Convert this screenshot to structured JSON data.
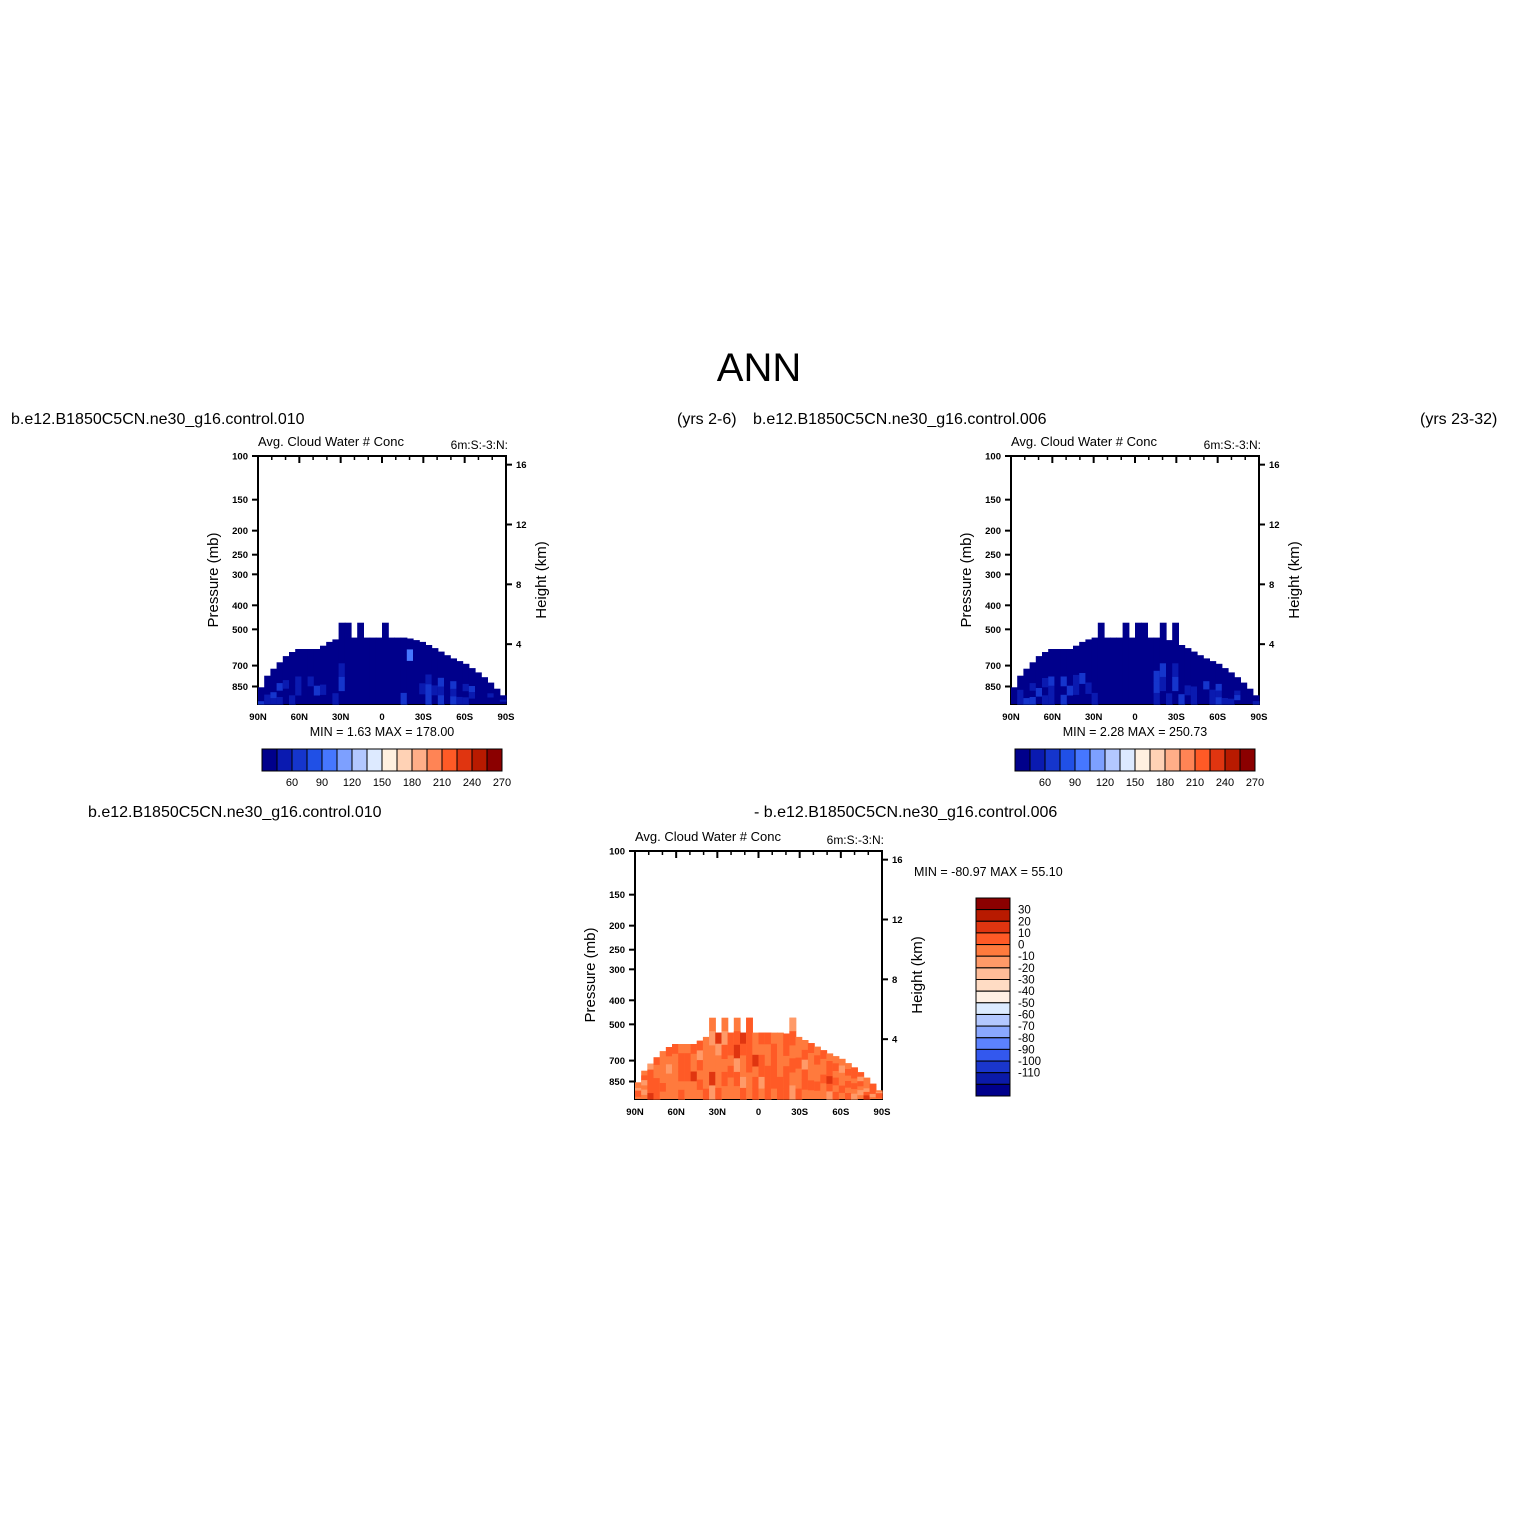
{
  "page_title": "ANN",
  "top_left": {
    "case_label": "b.e12.B1850C5CN.ne30_g16.control.010",
    "years_label": "(yrs 2-6)"
  },
  "top_right": {
    "case_label": "b.e12.B1850C5CN.ne30_g16.control.006",
    "years_label": "(yrs 23-32)"
  },
  "bottom": {
    "case_label_left": "b.e12.B1850C5CN.ne30_g16.control.010",
    "case_label_right": "- b.e12.B1850C5CN.ne30_g16.control.006"
  },
  "colors": {
    "dark_blue": "#00008b",
    "mid_blue": "#1f3fd6",
    "orange": "#ff7a3d",
    "dark_red": "#8b0000"
  },
  "chart_data": [
    {
      "type": "heatmap",
      "panel": "top-left",
      "title": "Avg. Cloud Water # Conc",
      "title_right": "6m:S:-3:N:",
      "ylabel": "Pressure (mb)",
      "ylabel_right": "Height (km)",
      "x_ticks": [
        "90N",
        "60N",
        "30N",
        "0",
        "30S",
        "60S",
        "90S"
      ],
      "y_ticks": [
        100,
        150,
        200,
        250,
        300,
        400,
        500,
        700,
        850
      ],
      "y_right_ticks": [
        16,
        12,
        8,
        4
      ],
      "stats_text": "MIN =    1.63   MAX = 178.00",
      "min": 1.63,
      "max": 178.0,
      "colorbar_orientation": "horizontal",
      "colorbar_labels": [
        "60",
        "90",
        "120",
        "150",
        "180",
        "210",
        "240",
        "270"
      ],
      "colorbar_colors": [
        "#00008b",
        "#0a1ab0",
        "#1535cc",
        "#2050e6",
        "#4677ff",
        "#7da0ff",
        "#b3c8ff",
        "#ddeaff",
        "#fff0e0",
        "#ffd2b5",
        "#ffae88",
        "#ff8455",
        "#ff5a26",
        "#e03510",
        "#b81a00",
        "#8b0000"
      ],
      "field": "blue"
    },
    {
      "type": "heatmap",
      "panel": "top-right",
      "title": "Avg. Cloud Water # Conc",
      "title_right": "6m:S:-3:N:",
      "ylabel": "Pressure (mb)",
      "ylabel_right": "Height (km)",
      "x_ticks": [
        "90N",
        "60N",
        "30N",
        "0",
        "30S",
        "60S",
        "90S"
      ],
      "y_ticks": [
        100,
        150,
        200,
        250,
        300,
        400,
        500,
        700,
        850
      ],
      "y_right_ticks": [
        16,
        12,
        8,
        4
      ],
      "stats_text": "MIN =    2.28   MAX = 250.73",
      "min": 2.28,
      "max": 250.73,
      "colorbar_orientation": "horizontal",
      "colorbar_labels": [
        "60",
        "90",
        "120",
        "150",
        "180",
        "210",
        "240",
        "270"
      ],
      "colorbar_colors": [
        "#00008b",
        "#0a1ab0",
        "#1535cc",
        "#2050e6",
        "#4677ff",
        "#7da0ff",
        "#b3c8ff",
        "#ddeaff",
        "#fff0e0",
        "#ffd2b5",
        "#ffae88",
        "#ff8455",
        "#ff5a26",
        "#e03510",
        "#b81a00",
        "#8b0000"
      ],
      "field": "blue"
    },
    {
      "type": "heatmap",
      "panel": "bottom-difference",
      "title": "Avg. Cloud Water # Conc",
      "title_right": "6m:S:-3:N:",
      "ylabel": "Pressure (mb)",
      "ylabel_right": "Height (km)",
      "x_ticks": [
        "90N",
        "60N",
        "30N",
        "0",
        "30S",
        "60S",
        "90S"
      ],
      "y_ticks": [
        100,
        150,
        200,
        250,
        300,
        400,
        500,
        700,
        850
      ],
      "y_right_ticks": [
        16,
        12,
        8,
        4
      ],
      "stats_text": "MIN = -80.97   MAX =   55.10",
      "min": -80.97,
      "max": 55.1,
      "colorbar_orientation": "vertical",
      "colorbar_labels": [
        "30",
        "20",
        "10",
        "0",
        "-10",
        "-20",
        "-30",
        "-40",
        "-50",
        "-60",
        "-70",
        "-80",
        "-90",
        "-100",
        "-110"
      ],
      "colorbar_colors": [
        "#8b0000",
        "#b81a00",
        "#e03510",
        "#ff5a26",
        "#ff7a3d",
        "#ff9a68",
        "#ffbc98",
        "#ffdcc4",
        "#fff0e4",
        "#dcebff",
        "#b3c8ff",
        "#8aa8ff",
        "#5c82ff",
        "#3358ee",
        "#1a36cc",
        "#0b1aa8",
        "#00008b"
      ],
      "field": "orange"
    }
  ]
}
